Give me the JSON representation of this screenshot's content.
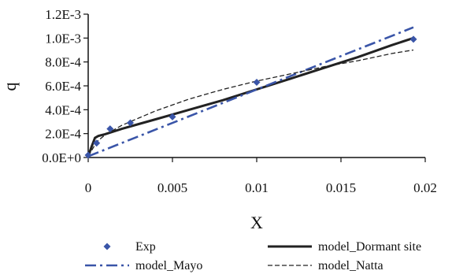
{
  "chart_data": {
    "type": "line",
    "xlabel": "X",
    "ylabel": "q",
    "xlim": [
      0,
      0.02
    ],
    "ylim": [
      0,
      0.0012
    ],
    "x_ticks": [
      {
        "value": 0,
        "label": "0"
      },
      {
        "value": 0.005,
        "label": "0.005"
      },
      {
        "value": 0.01,
        "label": "0.01"
      },
      {
        "value": 0.015,
        "label": "0.015"
      },
      {
        "value": 0.02,
        "label": "0.02"
      }
    ],
    "y_ticks": [
      {
        "value": 0,
        "label": "0.0E+0"
      },
      {
        "value": 0.0002,
        "label": "2.0E-4"
      },
      {
        "value": 0.0004,
        "label": "4.0E-4"
      },
      {
        "value": 0.0006,
        "label": "6.0E-4"
      },
      {
        "value": 0.0008,
        "label": "8.0E-4"
      },
      {
        "value": 0.001,
        "label": "1.0E-3"
      },
      {
        "value": 0.0012,
        "label": "1.2E-3"
      }
    ],
    "grid": false,
    "legend_position": "bottom",
    "series": [
      {
        "name": "Exp",
        "kind": "scatter",
        "color": "#3a55a8",
        "x": [
          0,
          0.0005,
          0.0013,
          0.0025,
          0.005,
          0.01,
          0.0193
        ],
        "y": [
          2e-05,
          0.00012,
          0.00024,
          0.00029,
          0.00034,
          0.00063,
          0.00099
        ]
      },
      {
        "name": "model_Dormant site",
        "kind": "line",
        "style": "solid",
        "color": "#222222",
        "x": [
          0,
          0.0002,
          0.0004,
          0.0006,
          0.001,
          0.002,
          0.003,
          0.004,
          0.005,
          0.006,
          0.008,
          0.01,
          0.012,
          0.014,
          0.016,
          0.018,
          0.0193
        ],
        "y": [
          1e-05,
          9e-05,
          0.000165,
          0.00018,
          0.000195,
          0.00024,
          0.00028,
          0.00032,
          0.00036,
          0.0004,
          0.00048,
          0.00057,
          0.00066,
          0.00075,
          0.00084,
          0.00094,
          0.001
        ]
      },
      {
        "name": "model_Mayo",
        "kind": "line",
        "style": "dashdot",
        "color": "#3a55a8",
        "x": [
          0,
          0.0193
        ],
        "y": [
          1e-05,
          0.00109
        ]
      },
      {
        "name": "model_Natta",
        "kind": "line",
        "style": "dashed",
        "color": "#222222",
        "x": [
          0,
          0.0005,
          0.001,
          0.002,
          0.003,
          0.004,
          0.005,
          0.006,
          0.008,
          0.01,
          0.012,
          0.014,
          0.016,
          0.018,
          0.0193
        ],
        "y": [
          1e-05,
          0.00013,
          0.00019,
          0.00027,
          0.00033,
          0.00039,
          0.00044,
          0.00049,
          0.00057,
          0.00064,
          0.0007,
          0.00076,
          0.00081,
          0.00087,
          0.0009
        ]
      }
    ]
  }
}
